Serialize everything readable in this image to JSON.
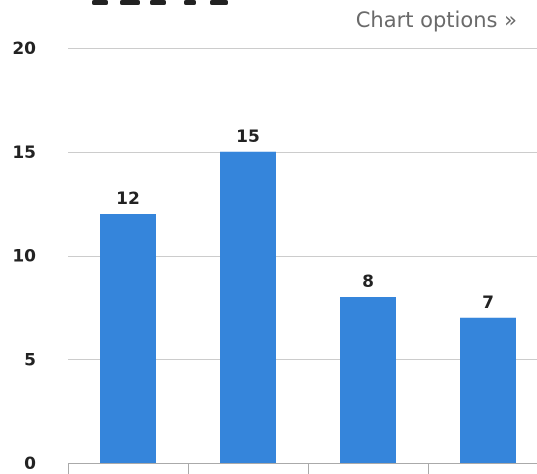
{
  "header": {
    "chart_options_label": "Chart options »"
  },
  "colors": {
    "bar": "#3585db",
    "gridline": "#cccccc",
    "axis": "#aaaaaa",
    "text": "#222222",
    "link": "#6a6a6a"
  },
  "chart_data": {
    "type": "bar",
    "categories": [
      "",
      "",
      "",
      ""
    ],
    "values": [
      12,
      15,
      8,
      7
    ],
    "data_labels": [
      "12",
      "15",
      "8",
      "7"
    ],
    "ylim": [
      0,
      20
    ],
    "yticks": [
      0,
      5,
      10,
      15,
      20
    ],
    "ytick_labels": [
      "0",
      "5",
      "10",
      "15",
      "20"
    ],
    "grid": true,
    "title": "",
    "xlabel": "",
    "ylabel": ""
  }
}
